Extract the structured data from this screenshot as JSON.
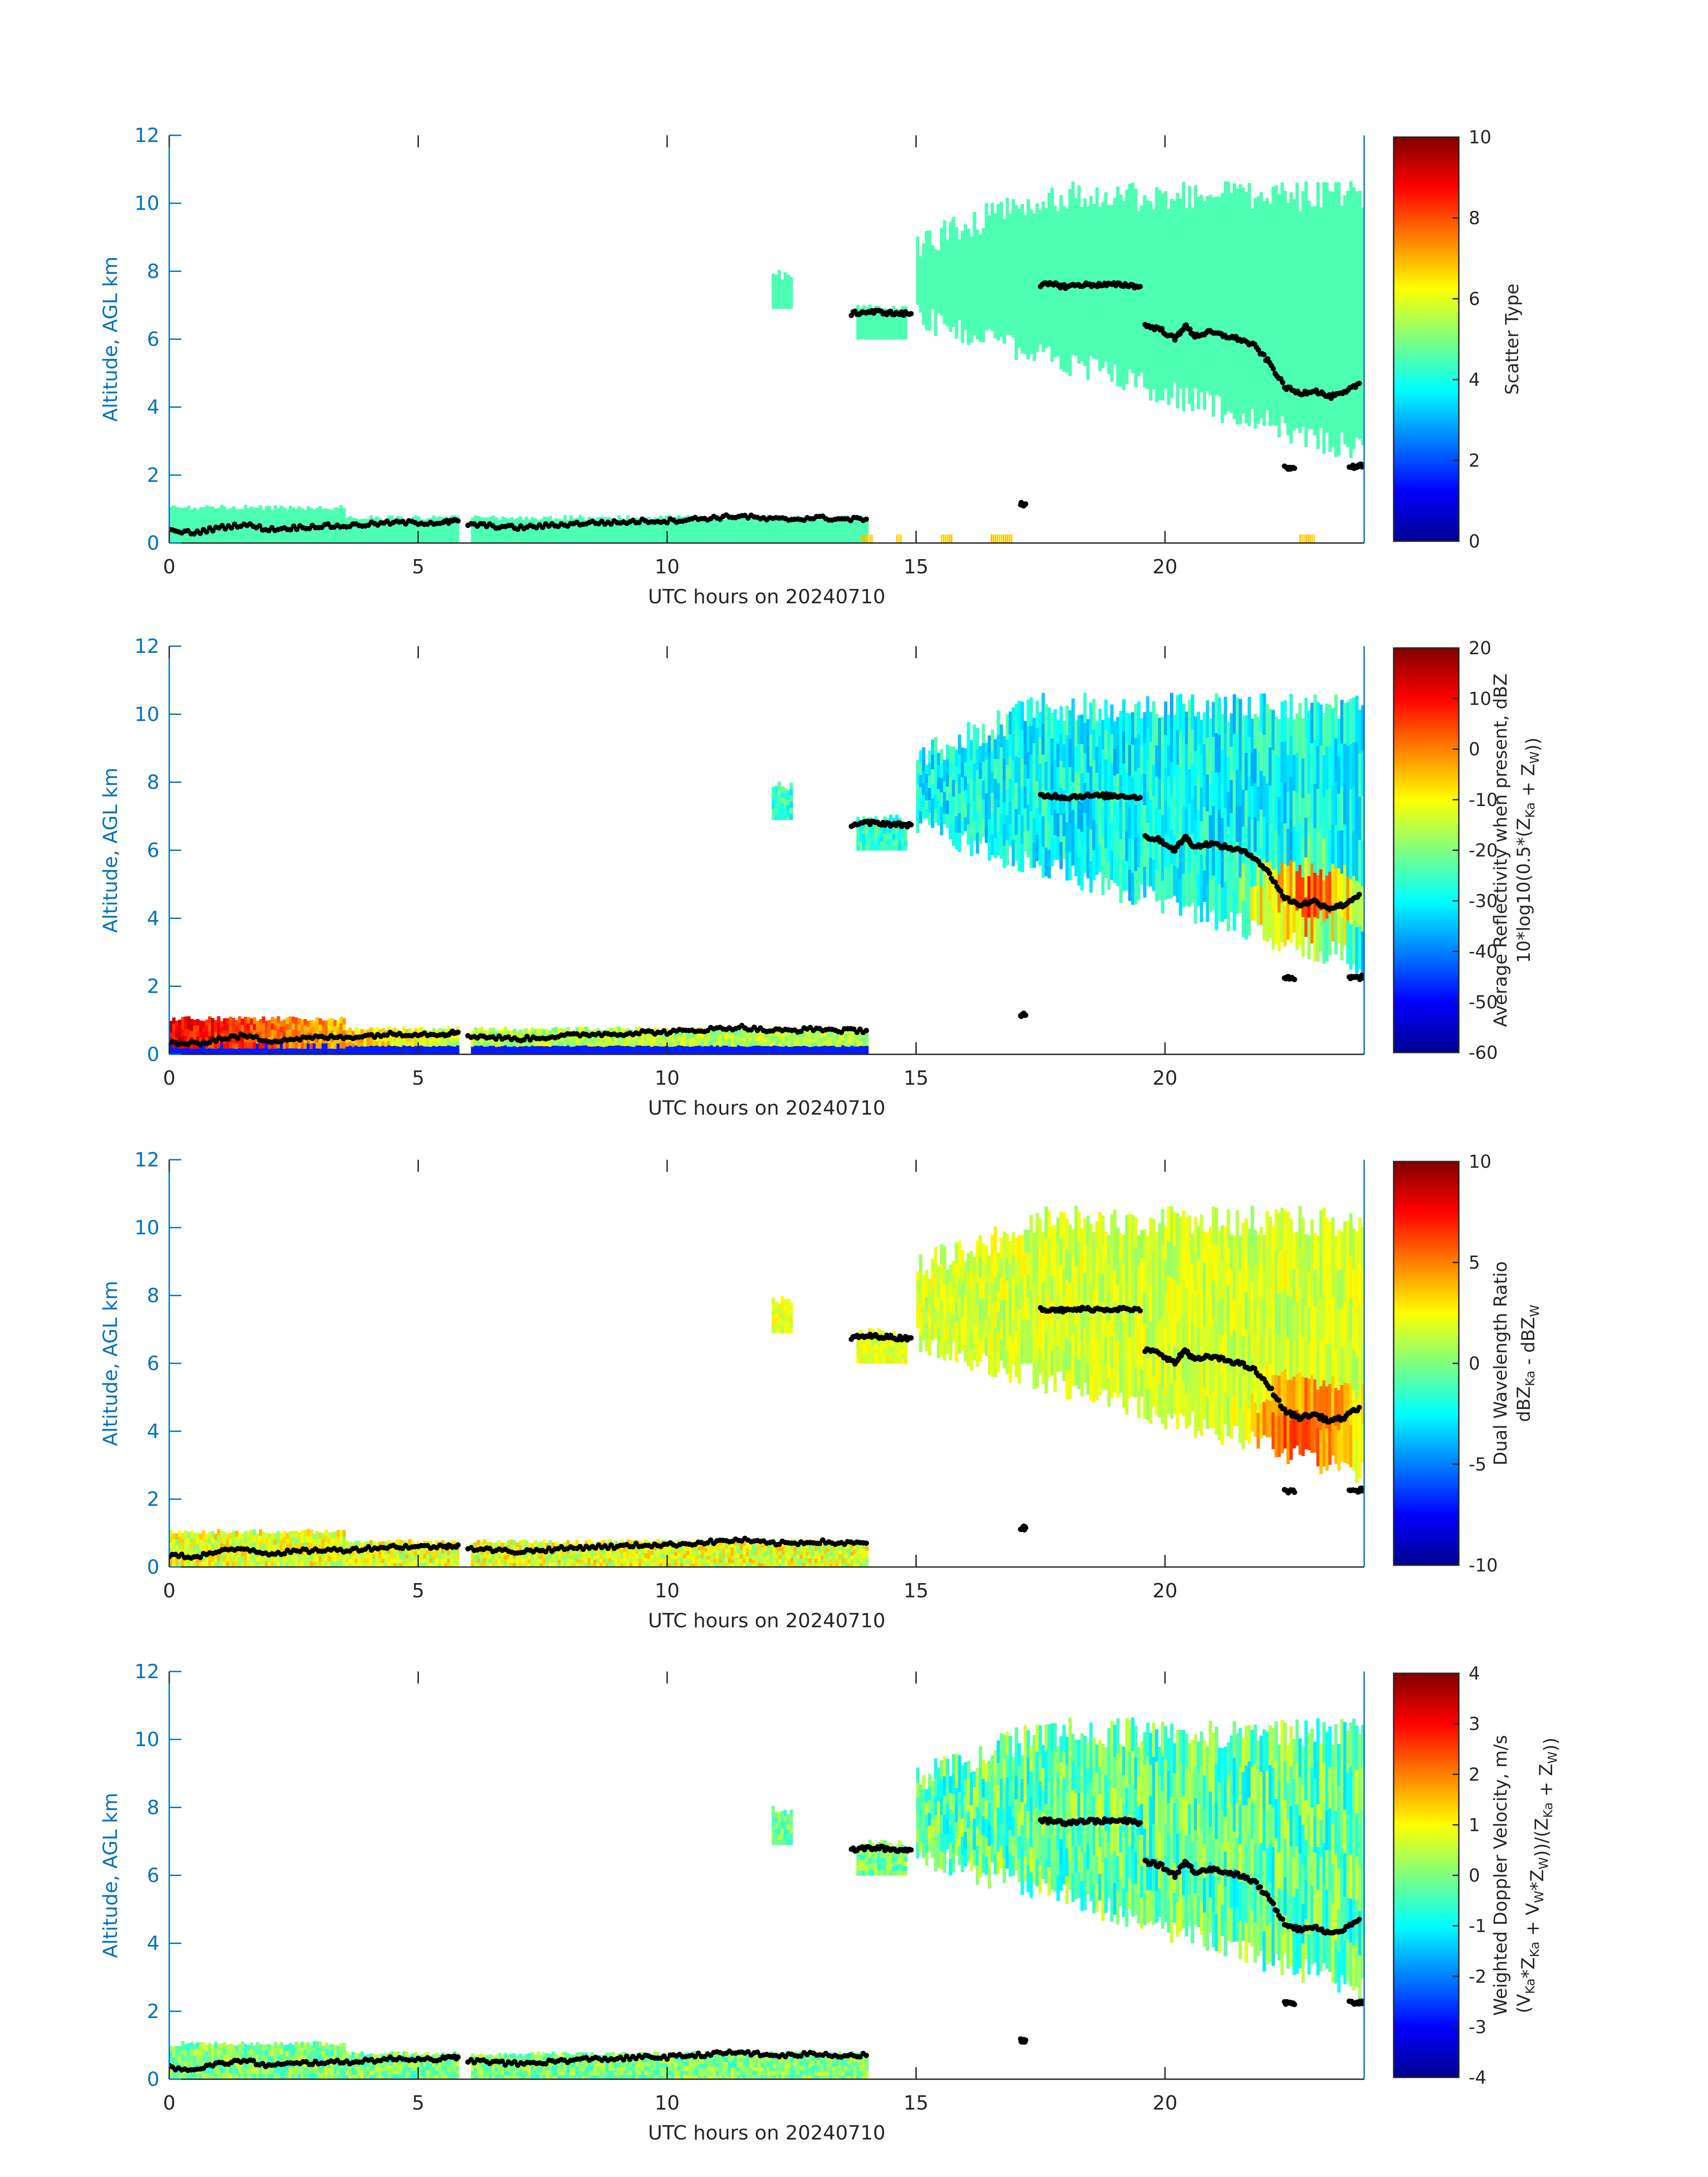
{
  "figure": {
    "colorscale": [
      "#00008f",
      "#0000ff",
      "#0080ff",
      "#00ffff",
      "#80ff80",
      "#ffff00",
      "#ff8000",
      "#ff0000",
      "#800000"
    ],
    "axis_color": "#0072bd",
    "text_color": "#262626",
    "marker_color": "#000000"
  },
  "chart_data": [
    {
      "type": "heatmap",
      "title": "",
      "xlabel": "UTC hours on 20240710",
      "ylabel": "Altitude, AGL km",
      "xlim": [
        0,
        24
      ],
      "ylim": [
        0,
        12
      ],
      "xticks": [
        "0",
        "5",
        "10",
        "15",
        "20"
      ],
      "yticks": [
        "0",
        "2",
        "4",
        "6",
        "8",
        "10",
        "12"
      ],
      "grid": false,
      "colorbar": {
        "label_lines": [
          "Scatter Type"
        ],
        "range": [
          0,
          10
        ],
        "ticks": [
          "0",
          "2",
          "4",
          "6",
          "8",
          "10"
        ]
      },
      "field": "scatter_type"
    },
    {
      "type": "heatmap",
      "title": "",
      "xlabel": "UTC hours on 20240710",
      "ylabel": "Altitude, AGL km",
      "xlim": [
        0,
        24
      ],
      "ylim": [
        0,
        12
      ],
      "xticks": [
        "0",
        "5",
        "10",
        "15",
        "20"
      ],
      "yticks": [
        "0",
        "2",
        "4",
        "6",
        "8",
        "10",
        "12"
      ],
      "grid": false,
      "colorbar": {
        "label_lines": [
          "Average Reflectivity when present, dBZ",
          "10*log10(0.5*(Z_Ka + Z_W))"
        ],
        "range": [
          -60,
          20
        ],
        "ticks": [
          "-60",
          "-50",
          "-40",
          "-30",
          "-20",
          "-10",
          "0",
          "10",
          "20"
        ]
      },
      "field": "reflectivity"
    },
    {
      "type": "heatmap",
      "title": "",
      "xlabel": "UTC hours on 20240710",
      "ylabel": "Altitude, AGL km",
      "xlim": [
        0,
        24
      ],
      "ylim": [
        0,
        12
      ],
      "xticks": [
        "0",
        "5",
        "10",
        "15",
        "20"
      ],
      "yticks": [
        "0",
        "2",
        "4",
        "6",
        "8",
        "10",
        "12"
      ],
      "grid": false,
      "colorbar": {
        "label_lines": [
          "Dual Wavelength Ratio",
          "dBZ_Ka - dBZ_W"
        ],
        "range": [
          -10,
          10
        ],
        "ticks": [
          "-10",
          "-5",
          "0",
          "5",
          "10"
        ]
      },
      "field": "dwr"
    },
    {
      "type": "heatmap",
      "title": "",
      "xlabel": "UTC hours on 20240710",
      "ylabel": "Altitude, AGL km",
      "xlim": [
        0,
        24
      ],
      "ylim": [
        0,
        12
      ],
      "xticks": [
        "0",
        "5",
        "10",
        "15",
        "20"
      ],
      "yticks": [
        "0",
        "2",
        "4",
        "6",
        "8",
        "10",
        "12"
      ],
      "grid": false,
      "colorbar": {
        "label_lines": [
          "Weighted Doppler Velocity, m/s",
          "(V_Ka*Z_Ka + V_W*Z_W))/(Z_Ka + Z_W))"
        ],
        "range": [
          -4,
          4
        ],
        "ticks": [
          "-4",
          "-3",
          "-2",
          "-1",
          "0",
          "1",
          "2",
          "3",
          "4"
        ]
      },
      "field": "velocity"
    }
  ],
  "echo_regions": [
    {
      "name": "boundary-layer-clutter",
      "x": [
        0,
        14
      ],
      "ybot": 0,
      "ytop": 1.1
    },
    {
      "name": "upper-cloud",
      "x": [
        15,
        24
      ],
      "ybot": [
        6.5,
        2.5
      ],
      "ytop": 10.3
    },
    {
      "name": "small-cloud-12",
      "x": [
        12.1,
        12.5
      ],
      "ybot": 6.9,
      "ytop": 7.9
    },
    {
      "name": "small-cloud-14",
      "x": [
        13.8,
        14.8
      ],
      "ybot": 6.0,
      "ytop": 6.9
    }
  ],
  "cloud_base_markers": [
    {
      "x": [
        0.0,
        0.5,
        1.0,
        1.5,
        2.0,
        2.5,
        3.0,
        3.5,
        4.0,
        4.5,
        5.0,
        5.5,
        5.8
      ],
      "y": [
        0.35,
        0.3,
        0.45,
        0.55,
        0.4,
        0.45,
        0.5,
        0.5,
        0.55,
        0.6,
        0.6,
        0.6,
        0.65
      ]
    },
    {
      "x": [
        6.0,
        6.5,
        7.0,
        7.5,
        8.0,
        8.5,
        9.0,
        9.5,
        10.0,
        10.5,
        11.0,
        11.5,
        12.0,
        12.5,
        13.0,
        13.5,
        14.0
      ],
      "y": [
        0.55,
        0.5,
        0.45,
        0.5,
        0.55,
        0.6,
        0.6,
        0.65,
        0.65,
        0.7,
        0.75,
        0.8,
        0.7,
        0.7,
        0.75,
        0.7,
        0.7
      ]
    },
    {
      "x": [
        13.7,
        14.0,
        14.3,
        14.6,
        14.9
      ],
      "y": [
        6.75,
        6.8,
        6.8,
        6.75,
        6.75
      ]
    },
    {
      "x": [
        17.1,
        17.2
      ],
      "y": [
        1.15,
        1.15
      ]
    },
    {
      "x": [
        17.5,
        17.8,
        18.0,
        18.3,
        18.6,
        18.9,
        19.2,
        19.5
      ],
      "y": [
        7.6,
        7.6,
        7.55,
        7.6,
        7.6,
        7.6,
        7.6,
        7.55
      ]
    },
    {
      "x": [
        19.6,
        19.9,
        20.2,
        20.4,
        20.6,
        20.9,
        21.2,
        21.5,
        21.8,
        22.1,
        22.4,
        22.7,
        23.0,
        23.3,
        23.6,
        23.9
      ],
      "y": [
        6.4,
        6.3,
        6.0,
        6.4,
        6.1,
        6.2,
        6.1,
        6.0,
        5.8,
        5.3,
        4.6,
        4.4,
        4.5,
        4.3,
        4.4,
        4.7
      ]
    },
    {
      "x": [
        22.4,
        22.6
      ],
      "y": [
        2.25,
        2.2
      ]
    },
    {
      "x": [
        23.7,
        23.9,
        24.0
      ],
      "y": [
        2.25,
        2.25,
        2.3
      ]
    }
  ]
}
